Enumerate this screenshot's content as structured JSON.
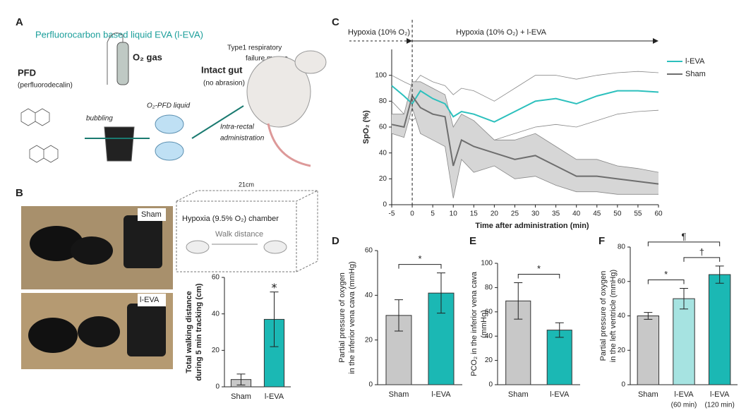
{
  "figure": {
    "panel_labels": [
      "A",
      "B",
      "C",
      "D",
      "E",
      "F"
    ],
    "a": {
      "title": "Perfluorocarbon based liquid EVA (l-EVA)",
      "pfd": "PFD",
      "pfd_full": "(perfluorodecalin)",
      "gas": "O₂ gas",
      "bubbling": "bubbling",
      "liquid": "O₂-PFD liquid",
      "gut": "Intact gut",
      "gut_note": "(no abrasion)",
      "mouse": [
        "Type1 respiratory",
        "failure mouse"
      ],
      "route": [
        "Intra-rectal",
        "administration"
      ]
    },
    "b": {
      "photo_labels": [
        "Sham",
        "l-EVA"
      ],
      "box_width": "21cm",
      "chamber": "Hypoxia (9.5% O₂) chamber",
      "walk": "Walk distance"
    }
  },
  "chart_data": [
    {
      "type": "bar",
      "categories": [
        "Sham",
        "l-EVA"
      ],
      "values": [
        4,
        37
      ],
      "errors": [
        3,
        15
      ],
      "colors": [
        "#c8c8c8",
        "#1bb8b4"
      ],
      "ylabel": [
        "Total walking distance",
        "during 5 min tracking (cm)"
      ],
      "ylim": [
        0,
        60
      ],
      "yticks": [
        0,
        20,
        40,
        60
      ],
      "annotations": [
        {
          "label": "⁎",
          "between": [
            1
          ]
        }
      ]
    },
    {
      "type": "line",
      "x": [
        -5,
        -2,
        0,
        2,
        5,
        8,
        10,
        12,
        15,
        20,
        25,
        30,
        35,
        40,
        45,
        50,
        55,
        60
      ],
      "series": [
        {
          "name": "l-EVA",
          "color": "#2cc0bd",
          "values": [
            92,
            84,
            78,
            88,
            82,
            78,
            68,
            72,
            70,
            64,
            72,
            80,
            82,
            78,
            84,
            88,
            88,
            87
          ],
          "lower": [
            80,
            70,
            65,
            70,
            70,
            65,
            50,
            55,
            55,
            50,
            55,
            60,
            62,
            60,
            65,
            70,
            72,
            73
          ],
          "upper": [
            100,
            95,
            92,
            100,
            95,
            92,
            85,
            90,
            88,
            80,
            90,
            100,
            100,
            97,
            100,
            102,
            103,
            102
          ]
        },
        {
          "name": "Sham",
          "color": "#6e6e6e",
          "values": [
            62,
            60,
            84,
            75,
            70,
            68,
            30,
            50,
            45,
            40,
            35,
            38,
            30,
            22,
            22,
            20,
            18,
            16
          ],
          "lower": [
            55,
            52,
            75,
            55,
            50,
            45,
            5,
            35,
            25,
            30,
            20,
            22,
            15,
            10,
            10,
            8,
            8,
            8
          ],
          "upper": [
            70,
            70,
            95,
            95,
            90,
            85,
            60,
            70,
            65,
            50,
            50,
            55,
            45,
            35,
            35,
            30,
            28,
            25
          ]
        }
      ],
      "phase_labels": [
        "Hypoxia (10% O₂)",
        "Hypoxia (10% O₂) + l-EVA"
      ],
      "marker_x": 0,
      "xlabel": "Time after administration (min)",
      "ylabel": "SpO₂ (%)",
      "xlim": [
        -5,
        60
      ],
      "xticks": [
        -5,
        0,
        5,
        10,
        15,
        20,
        25,
        30,
        35,
        40,
        45,
        50,
        55,
        60
      ],
      "ylim": [
        0,
        120
      ],
      "yticks": [
        0,
        20,
        40,
        60,
        80,
        100
      ],
      "legend": "top-right"
    },
    {
      "type": "bar",
      "categories": [
        "Sham",
        "l-EVA"
      ],
      "values": [
        31,
        41
      ],
      "errors": [
        7,
        9
      ],
      "colors": [
        "#c8c8c8",
        "#1bb8b4"
      ],
      "ylabel": [
        "Partial pressure of oxygen",
        "in the inferior vena cava (mmHg)"
      ],
      "ylim": [
        0,
        60
      ],
      "yticks": [
        0,
        20,
        40,
        60
      ],
      "annotations": [
        {
          "label": "*",
          "between": [
            0,
            1
          ]
        }
      ]
    },
    {
      "type": "bar",
      "categories": [
        "Sham",
        "l-EVA"
      ],
      "values": [
        69,
        45
      ],
      "errors": [
        15,
        6
      ],
      "colors": [
        "#c8c8c8",
        "#1bb8b4"
      ],
      "ylabel": [
        "PCO₂ in the inferior vena cava",
        "(mmHg)"
      ],
      "ylim": [
        0,
        100
      ],
      "yticks": [
        0,
        20,
        40,
        60,
        80,
        100
      ],
      "annotations": [
        {
          "label": "*",
          "between": [
            0,
            1
          ]
        }
      ]
    },
    {
      "type": "bar",
      "categories": [
        "Sham",
        "l-EVA",
        "l-EVA"
      ],
      "subcategories": [
        null,
        "(60 min)",
        "(120 min)"
      ],
      "values": [
        40,
        50,
        64
      ],
      "errors": [
        2,
        6,
        5
      ],
      "colors": [
        "#c8c8c8",
        "#a6e3e1",
        "#1bb8b4"
      ],
      "ylabel": [
        "Partial pressure of oxygen",
        "in the left ventricle (mmHg)"
      ],
      "ylim": [
        0,
        80
      ],
      "yticks": [
        0,
        20,
        40,
        60,
        80
      ],
      "annotations": [
        {
          "label": "*",
          "between": [
            0,
            1
          ]
        },
        {
          "label": "†",
          "between": [
            1,
            2
          ]
        },
        {
          "label": "¶",
          "between": [
            0,
            2
          ]
        }
      ]
    }
  ]
}
